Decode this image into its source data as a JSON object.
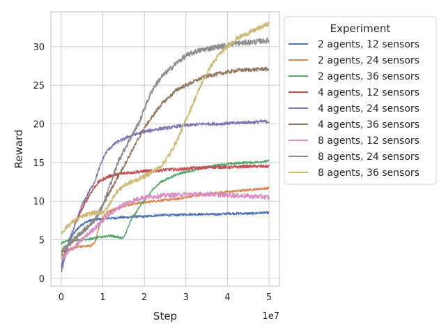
{
  "chart_data": {
    "type": "line",
    "xlabel": "Step",
    "ylabel": "Reward",
    "x_offset_label": "1e7",
    "xlim": [
      -2.5,
      52.5
    ],
    "ylim": [
      -1,
      34.5
    ],
    "x_unit_multiplier": 10000000,
    "xticks": [
      0,
      1,
      2,
      3,
      4,
      5
    ],
    "yticks": [
      0,
      5,
      10,
      15,
      20,
      25,
      30
    ],
    "grid": true,
    "legend_title": "Experiment",
    "legend_position": "outside-right",
    "x": [
      0,
      1,
      2,
      3,
      4,
      5,
      6,
      7,
      8,
      9,
      10,
      11,
      12,
      13,
      14,
      15,
      16,
      17,
      18,
      19,
      20,
      22,
      24,
      26,
      28,
      30,
      32,
      34,
      36,
      38,
      40,
      42,
      44,
      46,
      48,
      50
    ],
    "series": [
      {
        "name": "2 agents, 12 sensors",
        "color": "#4c72b0",
        "noise": 0.15,
        "values": [
          1.5,
          3.5,
          5.0,
          5.8,
          6.5,
          7.0,
          7.3,
          7.5,
          7.6,
          7.7,
          7.7,
          7.8,
          7.8,
          7.8,
          7.9,
          7.9,
          7.9,
          8.0,
          8.0,
          8.0,
          8.0,
          8.1,
          8.2,
          8.2,
          8.2,
          8.3,
          8.3,
          8.3,
          8.3,
          8.3,
          8.4,
          8.4,
          8.4,
          8.4,
          8.5,
          8.5
        ]
      },
      {
        "name": "2 agents, 24 sensors",
        "color": "#dd8452",
        "noise": 0.15,
        "values": [
          2.5,
          3.5,
          3.8,
          4.0,
          4.1,
          4.1,
          4.2,
          4.2,
          4.5,
          6.5,
          8.0,
          8.5,
          8.8,
          9.0,
          9.2,
          9.4,
          9.5,
          9.6,
          9.7,
          9.8,
          9.8,
          10.0,
          10.1,
          10.2,
          10.3,
          10.5,
          10.7,
          10.8,
          11.0,
          11.1,
          11.2,
          11.3,
          11.4,
          11.5,
          11.6,
          11.7
        ]
      },
      {
        "name": "2 agents, 36 sensors",
        "color": "#55a868",
        "noise": 0.15,
        "values": [
          4.5,
          4.8,
          5.0,
          5.0,
          5.0,
          5.0,
          5.1,
          5.1,
          5.2,
          5.3,
          5.4,
          5.5,
          5.5,
          5.4,
          5.3,
          5.2,
          6.5,
          7.8,
          8.5,
          9.5,
          10.0,
          11.5,
          12.5,
          13.0,
          13.5,
          13.8,
          14.0,
          14.3,
          14.5,
          14.7,
          14.8,
          14.9,
          15.0,
          15.0,
          15.1,
          15.2
        ]
      },
      {
        "name": "4 agents, 12 sensors",
        "color": "#c44e52",
        "noise": 0.2,
        "values": [
          0.8,
          3.0,
          5.0,
          6.5,
          7.8,
          9.0,
          10.0,
          11.0,
          11.8,
          12.5,
          12.8,
          13.1,
          13.3,
          13.4,
          13.5,
          13.6,
          13.7,
          13.7,
          13.8,
          13.8,
          13.9,
          13.9,
          14.0,
          14.1,
          14.1,
          14.2,
          14.3,
          14.3,
          14.4,
          14.4,
          14.4,
          14.4,
          14.5,
          14.5,
          14.5,
          14.5
        ]
      },
      {
        "name": "4 agents, 24 sensors",
        "color": "#8172b3",
        "noise": 0.2,
        "values": [
          1.0,
          3.0,
          5.0,
          6.5,
          8.0,
          9.5,
          10.5,
          11.5,
          12.5,
          14.0,
          15.5,
          16.5,
          17.0,
          17.5,
          17.8,
          18.0,
          18.3,
          18.5,
          18.7,
          18.8,
          19.0,
          19.2,
          19.4,
          19.5,
          19.7,
          19.8,
          19.9,
          20.0,
          20.0,
          20.0,
          20.1,
          20.1,
          20.2,
          20.2,
          20.3,
          20.3
        ]
      },
      {
        "name": "4 agents, 36 sensors",
        "color": "#937860",
        "noise": 0.25,
        "values": [
          3.0,
          3.8,
          4.5,
          5.0,
          5.5,
          6.0,
          6.5,
          7.0,
          7.5,
          8.5,
          9.5,
          10.5,
          11.5,
          12.5,
          13.5,
          14.5,
          15.5,
          16.5,
          17.5,
          18.5,
          19.5,
          21.0,
          22.5,
          23.5,
          24.5,
          25.0,
          25.5,
          26.0,
          26.3,
          26.5,
          26.7,
          26.9,
          27.0,
          27.0,
          27.1,
          27.1
        ]
      },
      {
        "name": "8 agents, 12 sensors",
        "color": "#da8bc3",
        "noise": 0.3,
        "values": [
          2.5,
          3.0,
          3.5,
          4.0,
          4.5,
          5.0,
          5.5,
          6.0,
          6.5,
          7.0,
          7.5,
          8.0,
          8.5,
          8.8,
          9.2,
          9.6,
          9.8,
          10.0,
          10.2,
          10.4,
          10.5,
          10.6,
          10.7,
          10.8,
          10.8,
          10.9,
          10.9,
          10.9,
          10.9,
          10.8,
          10.8,
          10.7,
          10.7,
          10.6,
          10.6,
          10.5
        ]
      },
      {
        "name": "8 agents, 24 sensors",
        "color": "#8c8c8c",
        "noise": 0.35,
        "values": [
          3.5,
          4.0,
          4.5,
          5.0,
          5.5,
          6.0,
          6.5,
          7.0,
          7.5,
          8.5,
          9.5,
          11.0,
          12.5,
          14.0,
          15.5,
          16.5,
          17.5,
          18.5,
          19.5,
          20.5,
          22.0,
          24.5,
          26.0,
          27.0,
          28.0,
          28.8,
          29.3,
          29.6,
          29.8,
          30.0,
          30.2,
          30.4,
          30.5,
          30.6,
          30.7,
          30.8
        ]
      },
      {
        "name": "8 agents, 36 sensors",
        "color": "#ccb974",
        "noise": 0.3,
        "values": [
          5.8,
          6.5,
          7.0,
          7.4,
          7.7,
          8.0,
          8.2,
          8.4,
          8.5,
          8.5,
          8.6,
          9.0,
          10.0,
          11.0,
          11.5,
          12.0,
          12.3,
          12.5,
          12.7,
          13.0,
          13.2,
          13.8,
          14.5,
          16.0,
          18.0,
          20.5,
          23.0,
          25.5,
          27.5,
          29.0,
          30.0,
          31.0,
          31.5,
          32.0,
          32.5,
          33.0
        ]
      }
    ]
  }
}
